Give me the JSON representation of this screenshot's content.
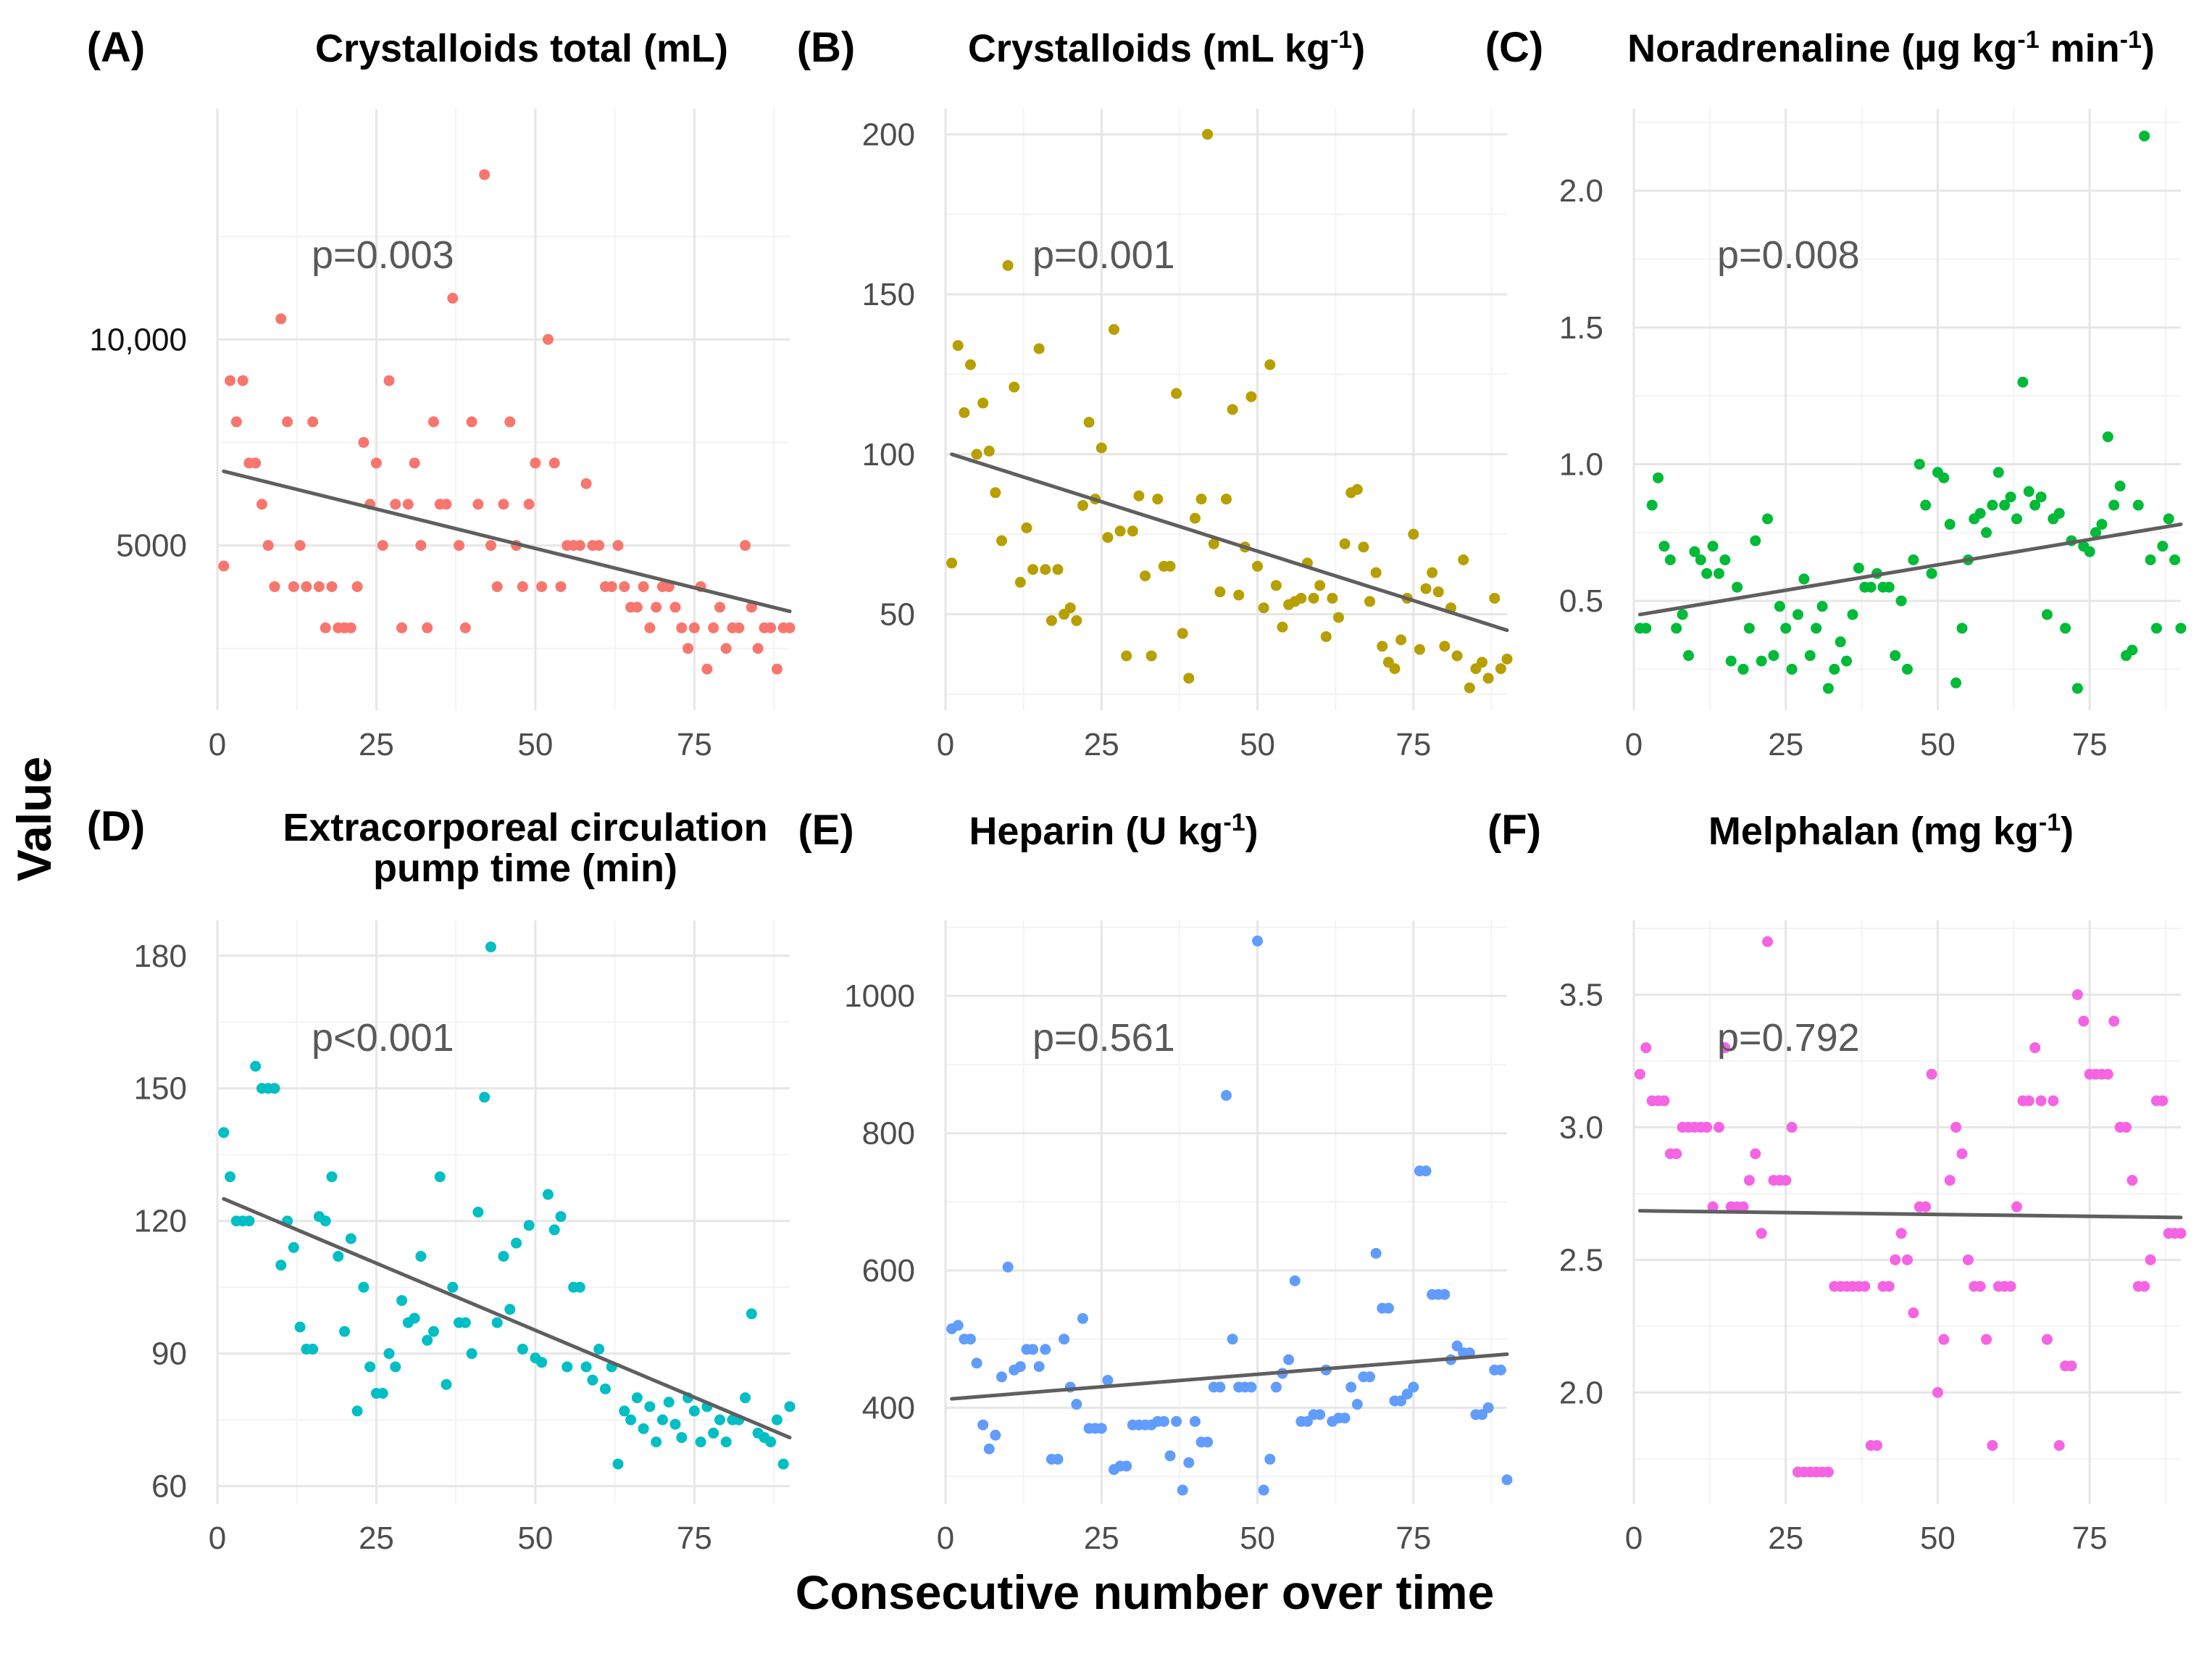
{
  "figure": {
    "ylabel": "Value",
    "xlabel": "Consecutive number over time"
  },
  "chart_data": [
    {
      "type": "scatter",
      "letter": "(A)",
      "title": "Crystalloids total (mL)",
      "title_lines": [
        "Crystalloids total (mL)"
      ],
      "pvalue": "p=0.003",
      "color": "#F8766D",
      "xlim": [
        0,
        90
      ],
      "ylim": [
        1000,
        15600
      ],
      "xticks": [
        0,
        25,
        50,
        75
      ],
      "yticks": [
        5000,
        10000
      ],
      "ytick_labels": [
        "5000",
        "10,000"
      ],
      "trend": {
        "x0": 1,
        "y0": 6800,
        "x1": 90,
        "y1": 3400
      },
      "x": [
        1,
        2,
        3,
        4,
        5,
        6,
        7,
        8,
        9,
        10,
        11,
        12,
        13,
        14,
        15,
        16,
        17,
        18,
        19,
        20,
        21,
        22,
        23,
        24,
        25,
        26,
        27,
        28,
        29,
        30,
        31,
        32,
        33,
        34,
        35,
        36,
        37,
        38,
        39,
        40,
        41,
        42,
        43,
        44,
        45,
        46,
        47,
        48,
        49,
        50,
        51,
        52,
        53,
        54,
        55,
        56,
        57,
        58,
        59,
        60,
        61,
        62,
        63,
        64,
        65,
        66,
        67,
        68,
        69,
        70,
        71,
        72,
        73,
        74,
        75,
        76,
        77,
        78,
        79,
        80,
        81,
        82,
        83,
        84,
        85,
        86,
        87,
        88,
        89,
        90
      ],
      "y": [
        4500,
        9000,
        8000,
        9000,
        7000,
        7000,
        6000,
        5000,
        4000,
        10500,
        8000,
        4000,
        5000,
        4000,
        8000,
        4000,
        3000,
        4000,
        3000,
        3000,
        3000,
        4000,
        7500,
        6000,
        7000,
        5000,
        9000,
        6000,
        3000,
        6000,
        7000,
        5000,
        3000,
        8000,
        6000,
        6000,
        11000,
        5000,
        3000,
        8000,
        6000,
        14000,
        5000,
        4000,
        6000,
        8000,
        5000,
        4000,
        6000,
        7000,
        4000,
        10000,
        7000,
        4000,
        5000,
        5000,
        5000,
        6500,
        5000,
        5000,
        4000,
        4000,
        5000,
        4000,
        3500,
        3500,
        4000,
        3000,
        3500,
        4000,
        4000,
        3500,
        3000,
        2500,
        3000,
        4000,
        2000,
        3000,
        3500,
        2500,
        3000,
        3000,
        5000,
        3500,
        2500,
        3000,
        3000,
        2000,
        3000,
        3000
      ]
    },
    {
      "type": "scatter",
      "letter": "(B)",
      "title": "Crystalloids (mL kg-1)",
      "title_lines": [
        "Crystalloids (mL kg-1)"
      ],
      "pvalue": "p=0.001",
      "color": "#B79F00",
      "xlim": [
        0,
        90
      ],
      "ylim": [
        20,
        208
      ],
      "xticks": [
        0,
        25,
        50,
        75
      ],
      "yticks": [
        50,
        100,
        150,
        200
      ],
      "ytick_labels": [
        "50",
        "100",
        "150",
        "200"
      ],
      "trend": {
        "x0": 1,
        "y0": 100,
        "x1": 90,
        "y1": 45
      },
      "x": [
        1,
        2,
        3,
        4,
        5,
        6,
        7,
        8,
        9,
        10,
        11,
        12,
        13,
        14,
        15,
        16,
        17,
        18,
        19,
        20,
        21,
        22,
        23,
        24,
        25,
        26,
        27,
        28,
        29,
        30,
        31,
        32,
        33,
        34,
        35,
        36,
        37,
        38,
        39,
        40,
        41,
        42,
        43,
        44,
        45,
        46,
        47,
        48,
        49,
        50,
        51,
        52,
        53,
        54,
        55,
        56,
        57,
        58,
        59,
        60,
        61,
        62,
        63,
        64,
        65,
        66,
        67,
        68,
        69,
        70,
        71,
        72,
        73,
        74,
        75,
        76,
        77,
        78,
        79,
        80,
        81,
        82,
        83,
        84,
        85,
        86,
        87,
        88,
        89,
        90
      ],
      "y": [
        66,
        134,
        113,
        128,
        100,
        116,
        101,
        88,
        73,
        159,
        121,
        60,
        77,
        64,
        133,
        64,
        48,
        64,
        50,
        52,
        48,
        84,
        110,
        86,
        102,
        74,
        139,
        76,
        37,
        76,
        87,
        62,
        37,
        86,
        65,
        65,
        119,
        44,
        30,
        80,
        86,
        200,
        72,
        57,
        86,
        114,
        56,
        71,
        118,
        65,
        52,
        128,
        59,
        46,
        53,
        54,
        55,
        66,
        55,
        59,
        43,
        55,
        49,
        72,
        88,
        89,
        71,
        54,
        63,
        40,
        35,
        33,
        42,
        55,
        75,
        39,
        58,
        63,
        57,
        40,
        52,
        37,
        67,
        27,
        33,
        35,
        30,
        55,
        33,
        36
      ]
    },
    {
      "type": "scatter",
      "letter": "(C)",
      "title": "Noradrenaline (µg kg-1 min-1)",
      "title_lines": [
        "Noradrenaline (µg kg-1 min-1)"
      ],
      "pvalue": "p=0.008",
      "color": "#00BA38",
      "xlim": [
        0,
        90
      ],
      "ylim": [
        0.1,
        2.3
      ],
      "xticks": [
        0,
        25,
        50,
        75
      ],
      "yticks": [
        0.5,
        1.0,
        1.5,
        2.0
      ],
      "ytick_labels": [
        "0.5",
        "1.0",
        "1.5",
        "2.0"
      ],
      "trend": {
        "x0": 1,
        "y0": 0.45,
        "x1": 90,
        "y1": 0.78
      },
      "x": [
        1,
        2,
        3,
        4,
        5,
        6,
        7,
        8,
        9,
        10,
        11,
        12,
        13,
        14,
        15,
        16,
        17,
        18,
        19,
        20,
        21,
        22,
        23,
        24,
        25,
        26,
        27,
        28,
        29,
        30,
        31,
        32,
        33,
        34,
        35,
        36,
        37,
        38,
        39,
        40,
        41,
        42,
        43,
        44,
        45,
        46,
        47,
        48,
        49,
        50,
        51,
        52,
        53,
        54,
        55,
        56,
        57,
        58,
        59,
        60,
        61,
        62,
        63,
        64,
        65,
        66,
        67,
        68,
        69,
        70,
        71,
        72,
        73,
        74,
        75,
        76,
        77,
        78,
        79,
        80,
        81,
        82,
        83,
        84,
        85,
        86,
        87,
        88,
        89,
        90
      ],
      "y": [
        0.4,
        0.4,
        0.85,
        0.95,
        0.7,
        0.65,
        0.4,
        0.45,
        0.3,
        0.68,
        0.65,
        0.6,
        0.7,
        0.6,
        0.65,
        0.28,
        0.55,
        0.25,
        0.4,
        0.72,
        0.28,
        0.8,
        0.3,
        0.48,
        0.4,
        0.25,
        0.45,
        0.58,
        0.3,
        0.4,
        0.48,
        0.18,
        0.25,
        0.35,
        0.28,
        0.45,
        0.62,
        0.55,
        0.55,
        0.6,
        0.55,
        0.55,
        0.3,
        0.5,
        0.25,
        0.65,
        1.0,
        0.85,
        0.6,
        0.97,
        0.95,
        0.78,
        0.2,
        0.4,
        0.65,
        0.8,
        0.82,
        0.75,
        0.85,
        0.97,
        0.85,
        0.88,
        0.8,
        1.3,
        0.9,
        0.85,
        0.88,
        0.45,
        0.8,
        0.82,
        0.4,
        0.72,
        0.18,
        0.7,
        0.68,
        0.75,
        0.78,
        1.1,
        0.85,
        0.92,
        0.3,
        0.32,
        0.85,
        2.2,
        0.65,
        0.4,
        0.7,
        0.8,
        0.65,
        0.4
      ]
    },
    {
      "type": "scatter",
      "letter": "(D)",
      "title": "Extracorporeal circulation pump time (min)",
      "title_lines": [
        "Extracorporeal circulation",
        "pump time (min)"
      ],
      "pvalue": "p<0.001",
      "color": "#00BFC4",
      "xlim": [
        0,
        90
      ],
      "ylim": [
        56,
        188
      ],
      "xticks": [
        0,
        25,
        50,
        75
      ],
      "yticks": [
        60,
        90,
        120,
        150,
        180
      ],
      "ytick_labels": [
        "60",
        "90",
        "120",
        "150",
        "180"
      ],
      "trend": {
        "x0": 1,
        "y0": 125,
        "x1": 90,
        "y1": 71
      },
      "x": [
        1,
        2,
        3,
        4,
        5,
        6,
        7,
        8,
        9,
        10,
        11,
        12,
        13,
        14,
        15,
        16,
        17,
        18,
        19,
        20,
        21,
        22,
        23,
        24,
        25,
        26,
        27,
        28,
        29,
        30,
        31,
        32,
        33,
        34,
        35,
        36,
        37,
        38,
        39,
        40,
        41,
        42,
        43,
        44,
        45,
        46,
        47,
        48,
        49,
        50,
        51,
        52,
        53,
        54,
        55,
        56,
        57,
        58,
        59,
        60,
        61,
        62,
        63,
        64,
        65,
        66,
        67,
        68,
        69,
        70,
        71,
        72,
        73,
        74,
        75,
        76,
        77,
        78,
        79,
        80,
        81,
        82,
        83,
        84,
        85,
        86,
        87,
        88,
        89,
        90
      ],
      "y": [
        140,
        130,
        120,
        120,
        120,
        155,
        150,
        150,
        150,
        110,
        120,
        114,
        96,
        91,
        91,
        121,
        120,
        130,
        112,
        95,
        116,
        77,
        105,
        87,
        81,
        81,
        90,
        87,
        102,
        97,
        98,
        112,
        93,
        95,
        130,
        83,
        105,
        97,
        97,
        90,
        122,
        148,
        182,
        97,
        112,
        100,
        115,
        91,
        119,
        89,
        88,
        126,
        118,
        121,
        87,
        105,
        105,
        87,
        84,
        91,
        82,
        87,
        65,
        77,
        75,
        80,
        73,
        78,
        70,
        75,
        79,
        74,
        71,
        80,
        77,
        70,
        78,
        72,
        75,
        70,
        75,
        75,
        80,
        99,
        72,
        71,
        70,
        75,
        65,
        78
      ]
    },
    {
      "type": "scatter",
      "letter": "(E)",
      "title": "Heparin (U kg-1)",
      "title_lines": [
        "Heparin (U kg-1)"
      ],
      "pvalue": "p=0.561",
      "color": "#619CFF",
      "xlim": [
        0,
        90
      ],
      "ylim": [
        260,
        1110
      ],
      "xticks": [
        0,
        25,
        50,
        75
      ],
      "yticks": [
        400,
        600,
        800,
        1000
      ],
      "ytick_labels": [
        "400",
        "600",
        "800",
        "1000"
      ],
      "trend": {
        "x0": 1,
        "y0": 413,
        "x1": 90,
        "y1": 478
      },
      "x": [
        1,
        2,
        3,
        4,
        5,
        6,
        7,
        8,
        9,
        10,
        11,
        12,
        13,
        14,
        15,
        16,
        17,
        18,
        19,
        20,
        21,
        22,
        23,
        24,
        25,
        26,
        27,
        28,
        29,
        30,
        31,
        32,
        33,
        34,
        35,
        36,
        37,
        38,
        39,
        40,
        41,
        42,
        43,
        44,
        45,
        46,
        47,
        48,
        49,
        50,
        51,
        52,
        53,
        54,
        55,
        56,
        57,
        58,
        59,
        60,
        61,
        62,
        63,
        64,
        65,
        66,
        67,
        68,
        69,
        70,
        71,
        72,
        73,
        74,
        75,
        76,
        77,
        78,
        79,
        80,
        81,
        82,
        83,
        84,
        85,
        86,
        87,
        88,
        89,
        90
      ],
      "y": [
        515,
        520,
        500,
        500,
        465,
        375,
        340,
        360,
        445,
        605,
        455,
        460,
        485,
        485,
        460,
        485,
        325,
        325,
        500,
        430,
        405,
        530,
        370,
        370,
        370,
        440,
        310,
        315,
        315,
        375,
        375,
        375,
        375,
        380,
        380,
        330,
        380,
        280,
        320,
        380,
        350,
        350,
        430,
        430,
        855,
        500,
        430,
        430,
        430,
        1080,
        280,
        325,
        430,
        450,
        470,
        585,
        380,
        380,
        390,
        390,
        455,
        380,
        385,
        385,
        430,
        405,
        445,
        445,
        625,
        545,
        545,
        410,
        410,
        420,
        430,
        745,
        745,
        565,
        565,
        565,
        470,
        490,
        480,
        480,
        390,
        390,
        400,
        455,
        455,
        295
      ]
    },
    {
      "type": "scatter",
      "letter": "(F)",
      "title": "Melphalan (mg kg-1)",
      "title_lines": [
        "Melphalan (mg kg-1)"
      ],
      "pvalue": "p=0.792",
      "color": "#F564E3",
      "xlim": [
        0,
        90
      ],
      "ylim": [
        1.58,
        3.78
      ],
      "xticks": [
        0,
        25,
        50,
        75
      ],
      "yticks": [
        2.0,
        2.5,
        3.0,
        3.5
      ],
      "ytick_labels": [
        "2.0",
        "2.5",
        "3.0",
        "3.5"
      ],
      "trend": {
        "x0": 1,
        "y0": 2.685,
        "x1": 90,
        "y1": 2.66
      },
      "x": [
        1,
        2,
        3,
        4,
        5,
        6,
        7,
        8,
        9,
        10,
        11,
        12,
        13,
        14,
        15,
        16,
        17,
        18,
        19,
        20,
        21,
        22,
        23,
        24,
        25,
        26,
        27,
        28,
        29,
        30,
        31,
        32,
        33,
        34,
        35,
        36,
        37,
        38,
        39,
        40,
        41,
        42,
        43,
        44,
        45,
        46,
        47,
        48,
        49,
        50,
        51,
        52,
        53,
        54,
        55,
        56,
        57,
        58,
        59,
        60,
        61,
        62,
        63,
        64,
        65,
        66,
        67,
        68,
        69,
        70,
        71,
        72,
        73,
        74,
        75,
        76,
        77,
        78,
        79,
        80,
        81,
        82,
        83,
        84,
        85,
        86,
        87,
        88,
        89,
        90
      ],
      "y": [
        3.2,
        3.3,
        3.1,
        3.1,
        3.1,
        2.9,
        2.9,
        3.0,
        3.0,
        3.0,
        3.0,
        3.0,
        2.7,
        3.0,
        3.3,
        2.7,
        2.7,
        2.7,
        2.8,
        2.9,
        2.6,
        3.7,
        2.8,
        2.8,
        2.8,
        3.0,
        1.7,
        1.7,
        1.7,
        1.7,
        1.7,
        1.7,
        2.4,
        2.4,
        2.4,
        2.4,
        2.4,
        2.4,
        1.8,
        1.8,
        2.4,
        2.4,
        2.5,
        2.6,
        2.5,
        2.3,
        2.7,
        2.7,
        3.2,
        2.0,
        2.2,
        2.8,
        3.0,
        2.9,
        2.5,
        2.4,
        2.4,
        2.2,
        1.8,
        2.4,
        2.4,
        2.4,
        2.7,
        3.1,
        3.1,
        3.3,
        3.1,
        2.2,
        3.1,
        1.8,
        2.1,
        2.1,
        3.5,
        3.4,
        3.2,
        3.2,
        3.2,
        3.2,
        3.4,
        3.0,
        3.0,
        2.8,
        2.4,
        2.4,
        2.5,
        3.1,
        3.1,
        2.6,
        2.6,
        2.6
      ]
    }
  ]
}
